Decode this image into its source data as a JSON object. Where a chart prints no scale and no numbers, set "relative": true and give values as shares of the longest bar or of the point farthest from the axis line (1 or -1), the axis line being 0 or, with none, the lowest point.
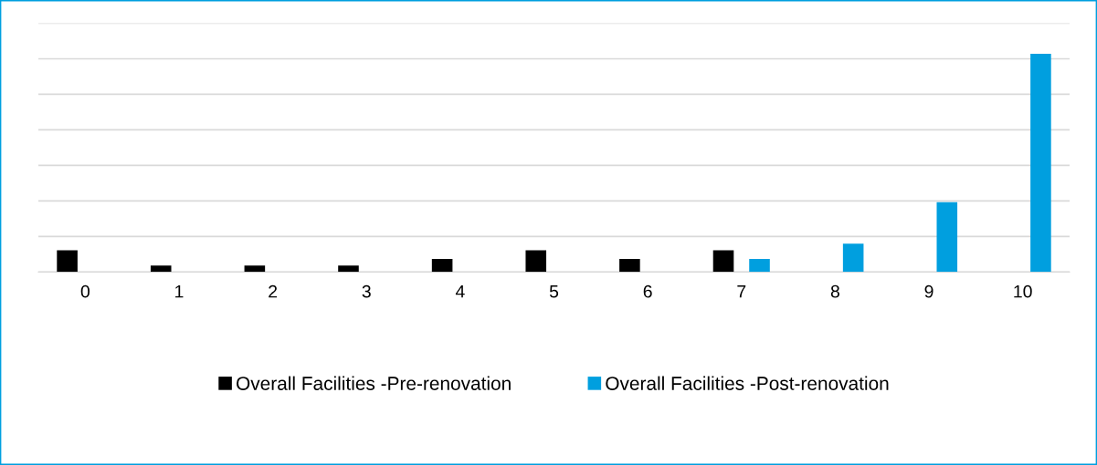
{
  "chart_data": {
    "type": "bar",
    "relative": true,
    "categories": [
      "0",
      "1",
      "2",
      "3",
      "4",
      "5",
      "6",
      "7",
      "8",
      "9",
      "10"
    ],
    "series": [
      {
        "name": "Overall Facilities -Pre-renovation",
        "color": "#000000",
        "values": [
          0.1,
          0.03,
          0.03,
          0.03,
          0.06,
          0.1,
          0.06,
          0.1,
          null,
          null,
          null
        ]
      },
      {
        "name": "Overall Facilities -Post-renovation",
        "color": "#009fdf",
        "values": [
          null,
          null,
          null,
          null,
          null,
          null,
          null,
          0.06,
          0.13,
          0.32,
          1
        ]
      }
    ],
    "grid": "y",
    "legend": "bottom",
    "tick_labels": "x"
  }
}
